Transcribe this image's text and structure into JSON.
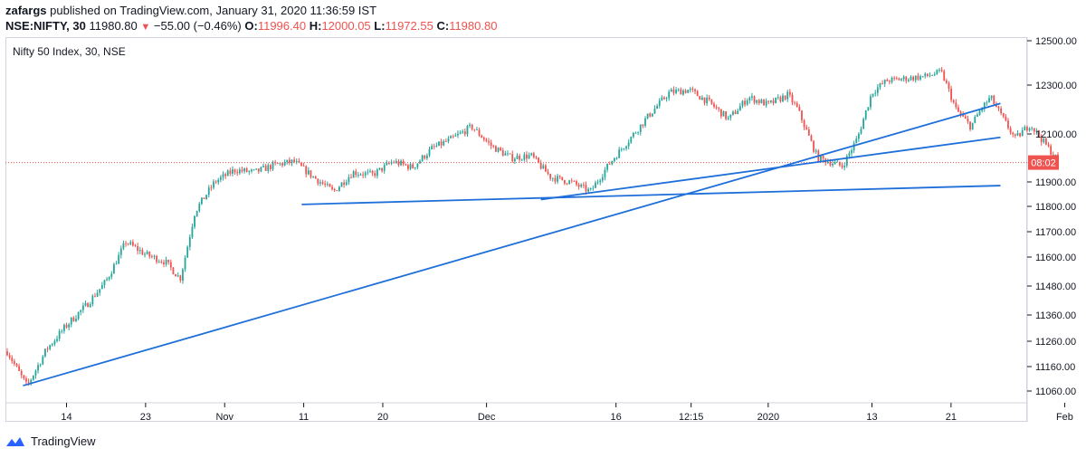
{
  "header": {
    "author": "zafargs",
    "published": "published on TradingView.com, January 31, 2020 11:36:59 IST",
    "symbol": "NSE:NIFTY, 30",
    "last": "11980.80",
    "change": "−55.00 (−0.46%)",
    "open_label": "O:",
    "open": "11996.40",
    "high_label": "H:",
    "high": "12000.05",
    "low_label": "L:",
    "low": "11972.55",
    "close_label": "C:",
    "close": "11980.80"
  },
  "footer": {
    "brand": "TradingView",
    "icon": "tradingview-logo-icon"
  },
  "colors": {
    "up": "#26a69a",
    "down": "#ef5350",
    "trend": "#1e6fd9",
    "price_line": "#ef5350"
  },
  "chart_data": {
    "type": "candlestick",
    "legend": "Nifty 50 Index, 30, NSE",
    "price_label": "08:02",
    "current_price": 11980.8,
    "y_ticks": [
      12500,
      12300,
      12100,
      11900,
      11800,
      11700,
      11600,
      11480,
      11360,
      11260,
      11160,
      11060
    ],
    "y_tick_labels": [
      "12500.00",
      "12300.00",
      "12100.00",
      "11900.00",
      "11800.00",
      "11700.00",
      "11600.00",
      "11480.00",
      "11360.00",
      "11260.00",
      "11160.00",
      "11060.00"
    ],
    "x_ticks": [
      {
        "label": "14",
        "t": 0.06
      },
      {
        "label": "23",
        "t": 0.14
      },
      {
        "label": "Nov",
        "t": 0.22
      },
      {
        "label": "11",
        "t": 0.3
      },
      {
        "label": "20",
        "t": 0.38
      },
      {
        "label": "Dec",
        "t": 0.485
      },
      {
        "label": "16",
        "t": 0.616
      },
      {
        "label": "12:15",
        "t": 0.692
      },
      {
        "label": "2020",
        "t": 0.77
      },
      {
        "label": "13",
        "t": 0.875
      },
      {
        "label": "21",
        "t": 0.955
      },
      {
        "label": "Feb",
        "t": 1.07
      }
    ],
    "price_path": [
      [
        0.0,
        11220
      ],
      [
        0.02,
        11080
      ],
      [
        0.04,
        11230
      ],
      [
        0.06,
        11320
      ],
      [
        0.08,
        11400
      ],
      [
        0.1,
        11500
      ],
      [
        0.12,
        11660
      ],
      [
        0.14,
        11610
      ],
      [
        0.16,
        11580
      ],
      [
        0.175,
        11510
      ],
      [
        0.19,
        11780
      ],
      [
        0.21,
        11900
      ],
      [
        0.23,
        11950
      ],
      [
        0.25,
        11940
      ],
      [
        0.27,
        11970
      ],
      [
        0.29,
        11985
      ],
      [
        0.31,
        11920
      ],
      [
        0.33,
        11860
      ],
      [
        0.35,
        11940
      ],
      [
        0.37,
        11930
      ],
      [
        0.39,
        11985
      ],
      [
        0.41,
        11960
      ],
      [
        0.43,
        12040
      ],
      [
        0.45,
        12080
      ],
      [
        0.47,
        12130
      ],
      [
        0.49,
        12050
      ],
      [
        0.51,
        12000
      ],
      [
        0.53,
        12010
      ],
      [
        0.55,
        11920
      ],
      [
        0.57,
        11900
      ],
      [
        0.59,
        11860
      ],
      [
        0.61,
        11980
      ],
      [
        0.63,
        12080
      ],
      [
        0.65,
        12180
      ],
      [
        0.67,
        12270
      ],
      [
        0.69,
        12280
      ],
      [
        0.71,
        12230
      ],
      [
        0.73,
        12160
      ],
      [
        0.75,
        12250
      ],
      [
        0.77,
        12220
      ],
      [
        0.79,
        12260
      ],
      [
        0.8,
        12200
      ],
      [
        0.82,
        12000
      ],
      [
        0.835,
        11980
      ],
      [
        0.845,
        11965
      ],
      [
        0.86,
        12080
      ],
      [
        0.875,
        12270
      ],
      [
        0.89,
        12320
      ],
      [
        0.91,
        12330
      ],
      [
        0.93,
        12340
      ],
      [
        0.945,
        12360
      ],
      [
        0.96,
        12200
      ],
      [
        0.975,
        12130
      ],
      [
        0.985,
        12200
      ],
      [
        0.995,
        12250
      ],
      [
        1.005,
        12180
      ],
      [
        1.02,
        12080
      ],
      [
        1.035,
        12140
      ],
      [
        1.05,
        12060
      ],
      [
        1.065,
        11980
      ]
    ],
    "trendlines": [
      {
        "from": [
          0.016,
          11082
        ],
        "to": [
          1.005,
          12225
        ]
      },
      {
        "from": [
          0.298,
          11808
        ],
        "to": [
          1.005,
          11885
        ]
      },
      {
        "from": [
          0.54,
          11828
        ],
        "to": [
          1.005,
          12086
        ]
      }
    ]
  }
}
